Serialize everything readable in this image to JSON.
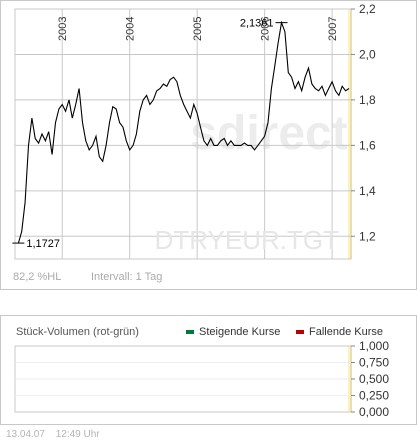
{
  "chart_data": [
    {
      "type": "line",
      "symbol": "DTRYEUR.TGT",
      "watermark": "sdirect",
      "x_ticks": [
        "2003",
        "2004",
        "2005",
        "2006",
        "2007"
      ],
      "y_ticks": [
        "1,2",
        "1,4",
        "1,6",
        "1,8",
        "2,0",
        "2,2"
      ],
      "ylim": [
        1.1,
        2.2
      ],
      "annotations": {
        "min_label": "1,1727",
        "max_label": "2,1361"
      },
      "stats": {
        "range_pct": "82,2 %HL",
        "interval": "Intervall: 1 Tag"
      },
      "series": [
        {
          "x": [
            2002.35,
            2002.4,
            2002.45,
            2002.5,
            2002.55,
            2002.6,
            2002.65,
            2002.7,
            2002.75,
            2002.8,
            2002.85,
            2002.9,
            2002.95,
            2003.0,
            2003.05,
            2003.1,
            2003.15,
            2003.2,
            2003.25,
            2003.3,
            2003.35,
            2003.4,
            2003.45,
            2003.5,
            2003.55,
            2003.6,
            2003.65,
            2003.7,
            2003.75,
            2003.8,
            2003.85,
            2003.9,
            2003.95,
            2004.0,
            2004.05,
            2004.1,
            2004.15,
            2004.2,
            2004.25,
            2004.3,
            2004.35,
            2004.4,
            2004.45,
            2004.5,
            2004.55,
            2004.6,
            2004.65,
            2004.7,
            2004.75,
            2004.8,
            2004.85,
            2004.9,
            2004.95,
            2005.0,
            2005.05,
            2005.1,
            2005.15,
            2005.2,
            2005.25,
            2005.3,
            2005.35,
            2005.4,
            2005.45,
            2005.5,
            2005.55,
            2005.6,
            2005.65,
            2005.7,
            2005.75,
            2005.8,
            2005.85,
            2005.9,
            2005.95,
            2006.0,
            2006.05,
            2006.1,
            2006.15,
            2006.2,
            2006.25,
            2006.3,
            2006.35,
            2006.4,
            2006.45,
            2006.5,
            2006.55,
            2006.6,
            2006.65,
            2006.7,
            2006.75,
            2006.8,
            2006.85,
            2006.9,
            2006.95,
            2007.0,
            2007.05,
            2007.1,
            2007.15,
            2007.2,
            2007.25
          ],
          "values": [
            1.17,
            1.22,
            1.35,
            1.6,
            1.72,
            1.63,
            1.61,
            1.65,
            1.62,
            1.66,
            1.56,
            1.7,
            1.76,
            1.78,
            1.75,
            1.8,
            1.72,
            1.78,
            1.85,
            1.7,
            1.62,
            1.58,
            1.6,
            1.64,
            1.55,
            1.53,
            1.6,
            1.7,
            1.77,
            1.76,
            1.7,
            1.68,
            1.62,
            1.58,
            1.6,
            1.65,
            1.75,
            1.8,
            1.82,
            1.78,
            1.8,
            1.84,
            1.85,
            1.87,
            1.86,
            1.89,
            1.9,
            1.88,
            1.82,
            1.78,
            1.75,
            1.72,
            1.78,
            1.74,
            1.68,
            1.62,
            1.6,
            1.63,
            1.6,
            1.6,
            1.62,
            1.63,
            1.6,
            1.62,
            1.6,
            1.6,
            1.6,
            1.61,
            1.6,
            1.6,
            1.58,
            1.6,
            1.62,
            1.64,
            1.7,
            1.85,
            1.95,
            2.05,
            2.14,
            2.1,
            1.92,
            1.9,
            1.85,
            1.88,
            1.84,
            1.9,
            1.94,
            1.87,
            1.85,
            1.84,
            1.86,
            1.82,
            1.85,
            1.88,
            1.84,
            1.82,
            1.86,
            1.84,
            1.85
          ]
        }
      ]
    },
    {
      "type": "bar",
      "title": "Stück-Volumen (rot-grün)",
      "legend": [
        {
          "label": "Steigende Kurse",
          "color": "#00793a"
        },
        {
          "label": "Fallende Kurse",
          "color": "#c00000"
        }
      ],
      "y_ticks": [
        "1,000",
        "0,750",
        "0,500",
        "0,250",
        "0,000"
      ],
      "ylim": [
        0,
        1
      ],
      "values": []
    }
  ],
  "footer": {
    "date": "13.04.07",
    "time": "12:49 Uhr"
  },
  "colors": {
    "line": "#000000",
    "grid": "#c8c8c8",
    "highlight": "#fff2b3",
    "watermark": "#ececec",
    "up": "#00793a",
    "down": "#c00000"
  }
}
